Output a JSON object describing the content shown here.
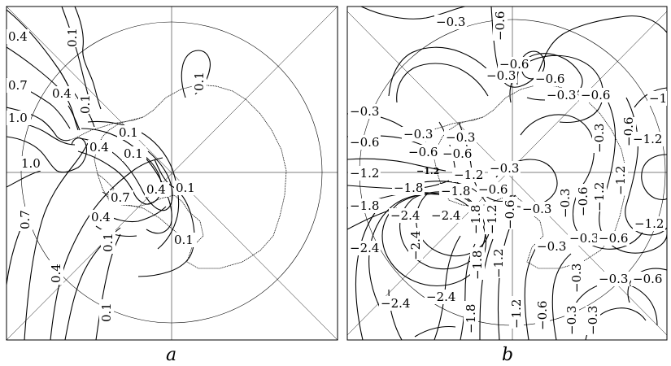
{
  "panels": [
    {
      "id": "a",
      "caption": "a",
      "contour_labels": [
        "0.4",
        "0.1",
        "0.7",
        "0.4",
        "0.1",
        "1.0",
        "1.0",
        "0.1",
        "0.4",
        "0.1",
        "0.7",
        "0.4",
        "0.1",
        "0.4",
        "0.1",
        "0.7",
        "0.1",
        "0.4",
        "0.1",
        "0.1"
      ]
    },
    {
      "id": "b",
      "caption": "b",
      "contour_labels": [
        "−0.3",
        "−0.6",
        "−0.6",
        "−0.3",
        "−0.6",
        "−0.3",
        "−0.6",
        "−1",
        "−0.3",
        "−0.3",
        "−0.3",
        "−0.6",
        "−0.6",
        "−0.6",
        "−0.3",
        "−0.6",
        "−1.2",
        "−1.2",
        "−1.2",
        "−1.2",
        "−0.3",
        "−1.2",
        "−1.8",
        "−1.8",
        "−0.6",
        "−1.8",
        "−2.4",
        "−2.4",
        "−1.8",
        "−1.2",
        "−0.6",
        "−0.3",
        "−0.3",
        "−0.6",
        "−1.2",
        "−1.2",
        "−2.4",
        "−2.4",
        "−1.8",
        "−1.2",
        "−0.3",
        "−0.3",
        "−0.6",
        "−0.3",
        "−0.3",
        "−0.6",
        "−2.4",
        "−2.4",
        "−1.8",
        "−1.2",
        "−0.6",
        "−0.3",
        "−0.3"
      ]
    }
  ]
}
